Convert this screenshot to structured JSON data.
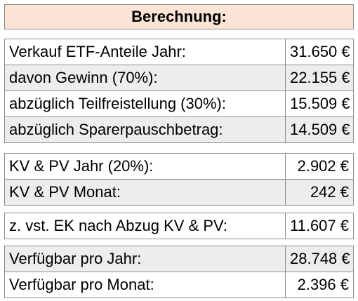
{
  "title": "Berechnung:",
  "colors": {
    "header_bg": "#fbe4d5",
    "row_shade": "#ededed",
    "border": "#8c8c8c"
  },
  "groups": [
    {
      "rows": [
        {
          "label": "Verkauf ETF-Anteile Jahr:",
          "value": "31.650 €"
        },
        {
          "label": "davon Gewinn (70%):",
          "value": "22.155 €"
        },
        {
          "label": "abzüglich Teilfreistellung (30%):",
          "value": "15.509 €"
        },
        {
          "label": "abzüglich Sparerpauschbetrag:",
          "value": "14.509 €"
        }
      ]
    },
    {
      "rows": [
        {
          "label": "KV & PV Jahr (20%):",
          "value": "2.902 €"
        },
        {
          "label": "KV & PV Monat:",
          "value": "242 €"
        }
      ]
    },
    {
      "rows": [
        {
          "label": "z. vst. EK nach Abzug KV & PV:",
          "value": "11.607 €"
        }
      ]
    },
    {
      "rows": [
        {
          "label": "Verfügbar pro Jahr:",
          "value": "28.748 €"
        },
        {
          "label": "Verfügbar pro Monat:",
          "value": "2.396 €"
        }
      ]
    }
  ]
}
